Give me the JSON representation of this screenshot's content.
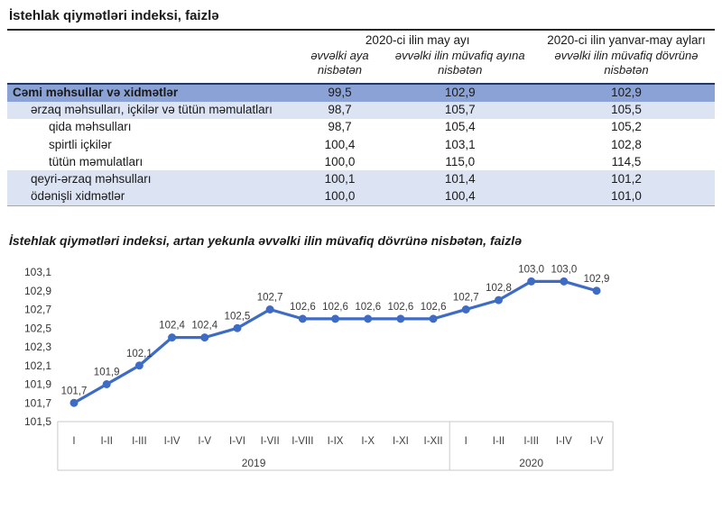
{
  "page_title": "İstehlak qiymətləri indeksi, faizlə",
  "table": {
    "column_groups": [
      {
        "label": "2020-ci ilin may ayı",
        "span": 2
      },
      {
        "label": "2020-ci ilin yanvar-may ayları",
        "span": 1
      }
    ],
    "column_headers": [
      "əvvəlki aya nisbətən",
      "əvvəlki ilin müvafiq ayına nisbətən",
      "əvvəlki ilin müvafiq dövrünə nisbətən"
    ],
    "rows": [
      {
        "label": "Cəmi məhsullar və xidmətlər",
        "indent": 0,
        "style": "total",
        "values": [
          "99,5",
          "102,9",
          "102,9"
        ]
      },
      {
        "label": "ərzaq məhsulları, içkilər və tütün məmulatları",
        "indent": 1,
        "style": "alt",
        "values": [
          "98,7",
          "105,7",
          "105,5"
        ]
      },
      {
        "label": "qida məhsulları",
        "indent": 2,
        "style": "plain",
        "values": [
          "98,7",
          "105,4",
          "105,2"
        ]
      },
      {
        "label": "spirtli içkilər",
        "indent": 2,
        "style": "plain",
        "values": [
          "100,4",
          "103,1",
          "102,8"
        ]
      },
      {
        "label": "tütün məmulatları",
        "indent": 2,
        "style": "plain",
        "values": [
          "100,0",
          "115,0",
          "114,5"
        ]
      },
      {
        "label": "qeyri-ərzaq məhsulları",
        "indent": 1,
        "style": "alt",
        "values": [
          "100,1",
          "101,4",
          "101,2"
        ]
      },
      {
        "label": "ödənişli xidmətlər",
        "indent": 1,
        "style": "alt",
        "values": [
          "100,0",
          "100,4",
          "101,0"
        ]
      }
    ]
  },
  "chart_title": "İstehlak qiymətləri indeksi, artan yekunla əvvəlki ilin müvafiq dövrünə nisbətən, faizlə",
  "chart_data": {
    "type": "line",
    "categories": [
      "I",
      "I-II",
      "I-III",
      "I-IV",
      "I-V",
      "I-VI",
      "I-VII",
      "I-VIII",
      "I-IX",
      "I-X",
      "I-XI",
      "I-XII",
      "I",
      "I-II",
      "I-III",
      "I-IV",
      "I-V"
    ],
    "category_groups": [
      {
        "label": "2019",
        "count": 12
      },
      {
        "label": "2020",
        "count": 5
      }
    ],
    "series": [
      {
        "name": "İstehlak qiymətləri indeksi",
        "values": [
          101.7,
          101.9,
          102.1,
          102.4,
          102.4,
          102.5,
          102.7,
          102.6,
          102.6,
          102.6,
          102.6,
          102.6,
          102.7,
          102.8,
          103.0,
          103.0,
          102.9
        ]
      }
    ],
    "data_labels": [
      "101,7",
      "101,9",
      "102,1",
      "102,4",
      "102,4",
      "102,5",
      "102,7",
      "102,6",
      "102,6",
      "102,6",
      "102,6",
      "102,6",
      "102,7",
      "102,8",
      "103,0",
      "103,0",
      "102,9"
    ],
    "y_ticks": [
      "103,1",
      "102,9",
      "102,7",
      "102,5",
      "102,3",
      "102,1",
      "101,9",
      "101,7",
      "101,5"
    ],
    "ylim": [
      101.5,
      103.1
    ],
    "y_step": 0.2,
    "grid": false,
    "legend": "none",
    "xlabel": "",
    "ylabel": ""
  },
  "colors": {
    "line": "#3E6BC4",
    "total_row_bg": "#8AA2D5",
    "alt_row_bg": "#DCE3F3",
    "dark_border": "#1F3864",
    "axis_box_border": "#C9C9C9",
    "axis_text": "#404040",
    "data_label_text": "#3A3A3A"
  }
}
